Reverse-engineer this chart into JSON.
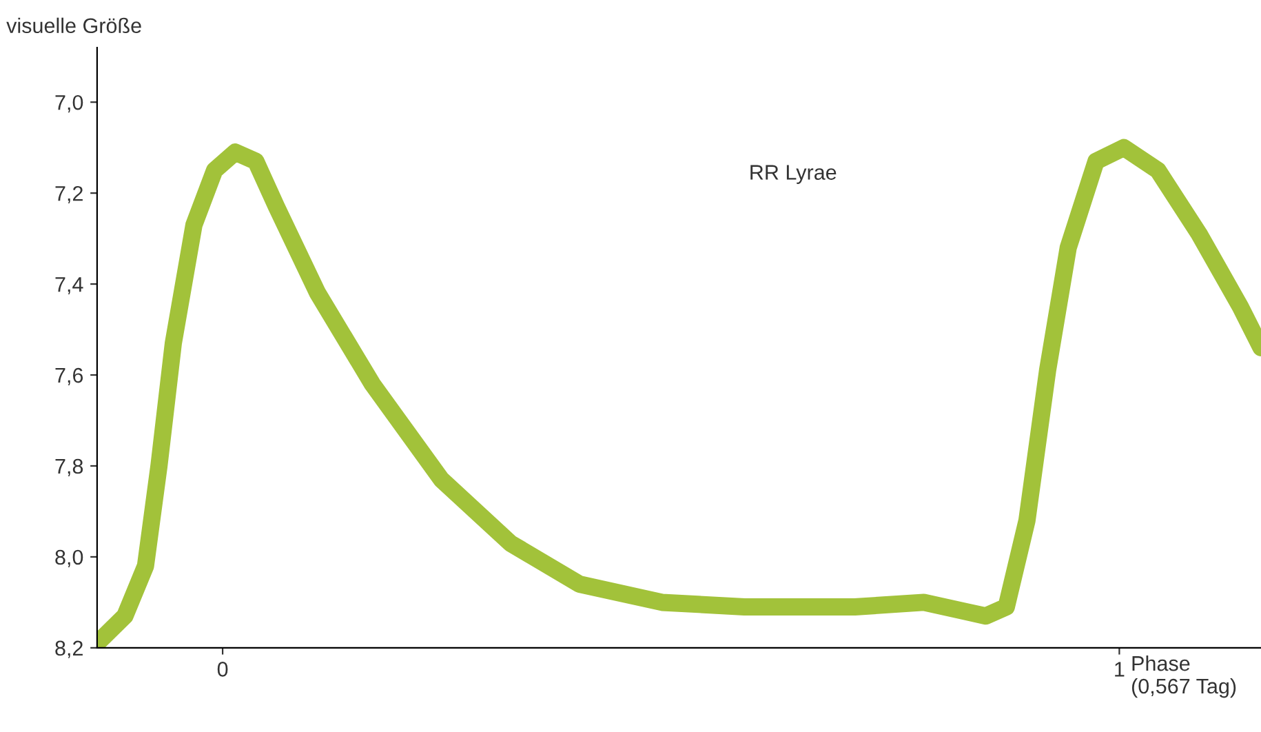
{
  "chart_data": {
    "type": "line",
    "ylabel": "visuelle Größe",
    "x": [
      -0.14,
      -0.109,
      -0.086,
      -0.071,
      -0.055,
      -0.032,
      -0.009,
      0.014,
      0.037,
      0.06,
      0.106,
      0.167,
      0.244,
      0.321,
      0.398,
      0.49,
      0.582,
      0.705,
      0.782,
      0.828,
      0.851,
      0.874,
      0.897,
      0.92,
      0.943,
      0.974,
      1.005,
      1.043,
      1.089,
      1.135,
      1.158
    ],
    "series": [
      {
        "name": "RR Lyrae",
        "color": "#a2c23a",
        "values": [
          8.19,
          8.13,
          8.02,
          7.8,
          7.53,
          7.27,
          7.15,
          7.11,
          7.13,
          7.23,
          7.42,
          7.62,
          7.83,
          7.97,
          8.06,
          8.1,
          8.11,
          8.11,
          8.1,
          8.12,
          8.13,
          8.11,
          7.92,
          7.59,
          7.32,
          7.13,
          7.1,
          7.15,
          7.29,
          7.45,
          7.54
        ]
      }
    ],
    "xlim": [
      -0.14,
      1.158
    ],
    "xticks": [
      0,
      1
    ],
    "xlabel": "Phase\n(0,567 Tag)",
    "ylim": [
      8.2,
      6.88
    ],
    "yticks": [
      {
        "value": 7.0,
        "label": "7,0"
      },
      {
        "value": 7.2,
        "label": "7,2"
      },
      {
        "value": 7.4,
        "label": "7,4"
      },
      {
        "value": 7.6,
        "label": "7,6"
      },
      {
        "value": 7.8,
        "label": "7,8"
      },
      {
        "value": 8.0,
        "label": "8,0"
      },
      {
        "value": 8.2,
        "label": "8,2"
      }
    ],
    "grid": false,
    "legend": false,
    "line_style": "solid"
  }
}
